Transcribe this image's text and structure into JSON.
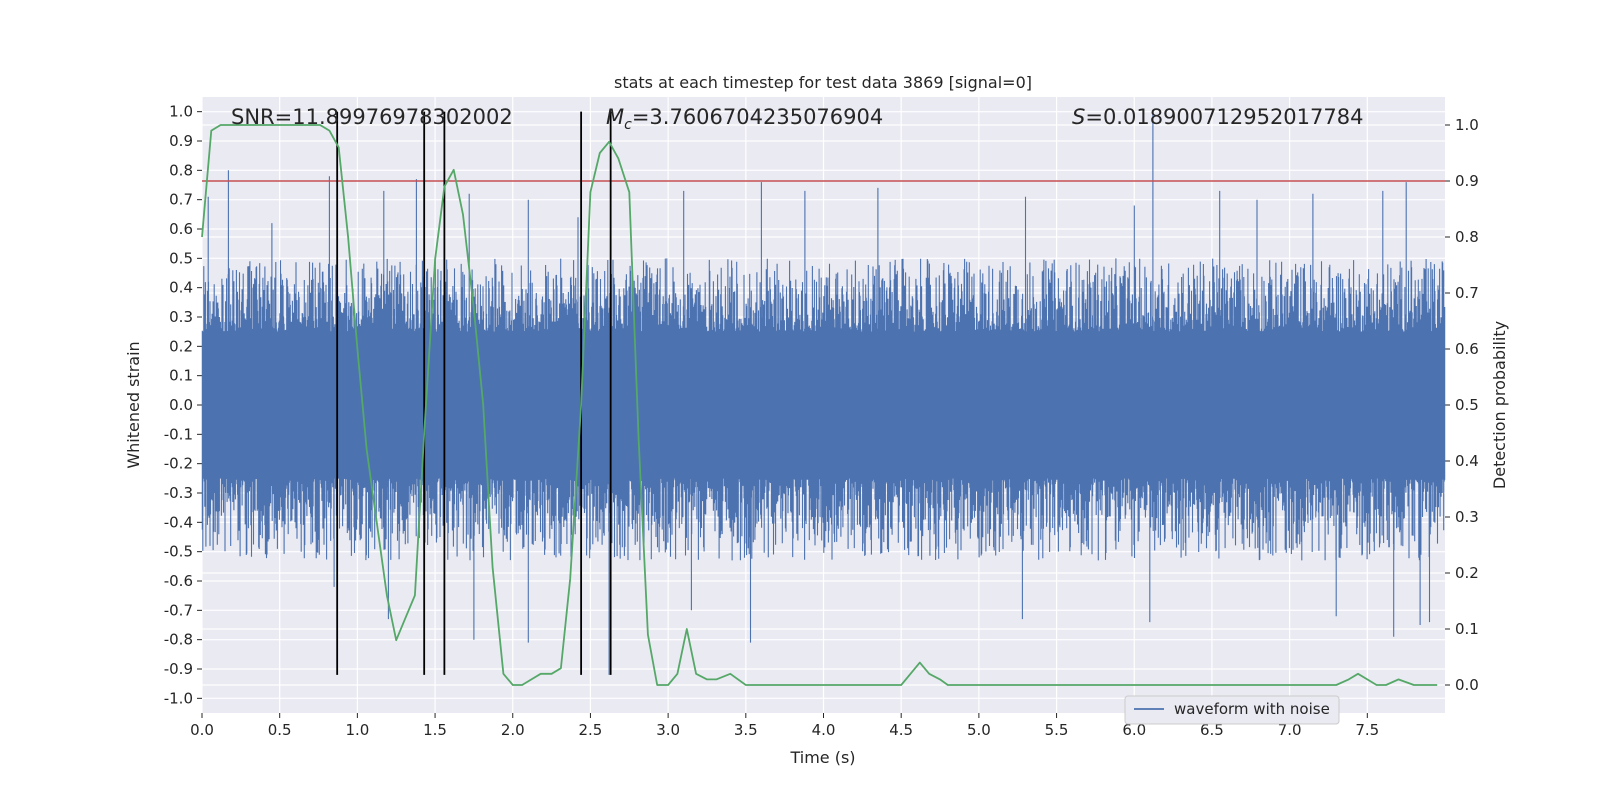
{
  "chart_data": {
    "type": "line",
    "title": "stats at each timestep for test data 3869 [signal=0]",
    "xlabel": "Time (s)",
    "ylabel": "Whitened strain",
    "y2label": "Detection probability",
    "xlim": [
      0.0,
      8.0
    ],
    "ylim": [
      -1.05,
      1.05
    ],
    "y2lim": [
      -0.05,
      1.05
    ],
    "xticks": [
      "0.0",
      "0.5",
      "1.0",
      "1.5",
      "2.0",
      "2.5",
      "3.0",
      "3.5",
      "4.0",
      "4.5",
      "5.0",
      "5.5",
      "6.0",
      "6.5",
      "7.0",
      "7.5"
    ],
    "yticks": [
      "1.0",
      "0.9",
      "0.8",
      "0.7",
      "0.6",
      "0.5",
      "0.4",
      "0.3",
      "0.2",
      "0.1",
      "0.0",
      "-0.1",
      "-0.2",
      "-0.3",
      "-0.4",
      "-0.5",
      "-0.6",
      "-0.7",
      "-0.8",
      "-0.9",
      "-1.0"
    ],
    "y2ticks": [
      "1.0",
      "0.9",
      "0.8",
      "0.7",
      "0.6",
      "0.5",
      "0.4",
      "0.3",
      "0.2",
      "0.1",
      "0.0"
    ],
    "annotations": {
      "snr": "SNR=11.89976978302002",
      "mc_symbol": "M",
      "mc_sub": "c",
      "mc_value": "=3.7606704235076904",
      "s_symbol": "S",
      "s_value": "=0.018900712952017784"
    },
    "legend": {
      "label": "waveform with noise",
      "placement": "lower right"
    },
    "threshold": {
      "axis": "right",
      "y": 0.9,
      "color": "#c44e52"
    },
    "vertical_lines": [
      {
        "x": 0.87,
        "ymin": -0.92,
        "ymax": 1.0
      },
      {
        "x": 1.43,
        "ymin": -0.92,
        "ymax": 1.0
      },
      {
        "x": 1.56,
        "ymin": -0.92,
        "ymax": 1.0
      },
      {
        "x": 2.44,
        "ymin": -0.92,
        "ymax": 1.0
      },
      {
        "x": 2.63,
        "ymin": -0.92,
        "ymax": 1.0
      }
    ],
    "series": [
      {
        "name": "waveform with noise",
        "axis": "left",
        "color": "#4c72b0",
        "band": {
          "core_min": -0.25,
          "core_max": 0.25,
          "typical_min": -0.47,
          "typical_max": 0.42
        },
        "spikes": [
          {
            "x": 0.04,
            "y": 0.71
          },
          {
            "x": 0.17,
            "y": 0.8
          },
          {
            "x": 0.45,
            "y": 0.62
          },
          {
            "x": 0.82,
            "y": 0.78
          },
          {
            "x": 1.17,
            "y": 0.73
          },
          {
            "x": 1.38,
            "y": 0.77
          },
          {
            "x": 1.72,
            "y": 0.72
          },
          {
            "x": 2.1,
            "y": 0.7
          },
          {
            "x": 2.42,
            "y": 0.64
          },
          {
            "x": 3.1,
            "y": 0.73
          },
          {
            "x": 3.6,
            "y": 0.76
          },
          {
            "x": 3.88,
            "y": 0.73
          },
          {
            "x": 4.35,
            "y": 0.74
          },
          {
            "x": 5.3,
            "y": 0.71
          },
          {
            "x": 6.0,
            "y": 0.68
          },
          {
            "x": 6.12,
            "y": 1.0
          },
          {
            "x": 6.55,
            "y": 0.73
          },
          {
            "x": 6.79,
            "y": 0.7
          },
          {
            "x": 7.15,
            "y": 0.72
          },
          {
            "x": 7.6,
            "y": 0.73
          },
          {
            "x": 7.75,
            "y": 0.76
          },
          {
            "x": 0.85,
            "y": -0.62
          },
          {
            "x": 1.2,
            "y": -0.73
          },
          {
            "x": 1.75,
            "y": -0.8
          },
          {
            "x": 2.1,
            "y": -0.81
          },
          {
            "x": 2.62,
            "y": -0.92
          },
          {
            "x": 3.15,
            "y": -0.7
          },
          {
            "x": 3.53,
            "y": -0.81
          },
          {
            "x": 5.28,
            "y": -0.73
          },
          {
            "x": 6.1,
            "y": -0.74
          },
          {
            "x": 7.3,
            "y": -0.72
          },
          {
            "x": 7.67,
            "y": -0.79
          },
          {
            "x": 7.84,
            "y": -0.75
          },
          {
            "x": 7.9,
            "y": -0.74
          }
        ]
      },
      {
        "name": "detection probability",
        "axis": "right",
        "color": "#55a868",
        "x": [
          0.0,
          0.06,
          0.12,
          0.2,
          0.3,
          0.4,
          0.5,
          0.6,
          0.7,
          0.76,
          0.82,
          0.88,
          0.94,
          1.0,
          1.06,
          1.12,
          1.19,
          1.25,
          1.31,
          1.37,
          1.43,
          1.5,
          1.56,
          1.62,
          1.68,
          1.75,
          1.81,
          1.87,
          1.94,
          2.0,
          2.06,
          2.12,
          2.18,
          2.25,
          2.31,
          2.37,
          2.44,
          2.5,
          2.56,
          2.62,
          2.68,
          2.75,
          2.81,
          2.87,
          2.93,
          3.0,
          3.06,
          3.12,
          3.18,
          3.25,
          3.31,
          3.4,
          3.5,
          3.6,
          3.8,
          4.0,
          4.2,
          4.4,
          4.5,
          4.56,
          4.62,
          4.68,
          4.75,
          4.8,
          4.9,
          5.0,
          5.2,
          5.4,
          5.5,
          5.56,
          5.7,
          5.9,
          6.1,
          6.3,
          6.5,
          6.7,
          6.9,
          7.1,
          7.2,
          7.3,
          7.38,
          7.44,
          7.5,
          7.56,
          7.62,
          7.7,
          7.8,
          7.95
        ],
        "y": [
          0.8,
          0.99,
          1.0,
          1.0,
          1.0,
          1.0,
          1.0,
          1.0,
          1.0,
          1.0,
          0.99,
          0.96,
          0.8,
          0.6,
          0.42,
          0.3,
          0.16,
          0.08,
          0.12,
          0.16,
          0.45,
          0.76,
          0.89,
          0.92,
          0.84,
          0.67,
          0.5,
          0.21,
          0.02,
          0.0,
          0.0,
          0.01,
          0.02,
          0.02,
          0.03,
          0.19,
          0.5,
          0.88,
          0.95,
          0.97,
          0.94,
          0.88,
          0.44,
          0.09,
          0.0,
          0.0,
          0.02,
          0.1,
          0.02,
          0.01,
          0.01,
          0.02,
          0.0,
          0.0,
          0.0,
          0.0,
          0.0,
          0.0,
          0.0,
          0.02,
          0.04,
          0.02,
          0.01,
          0.0,
          0.0,
          0.0,
          0.0,
          0.0,
          0.0,
          0.0,
          0.0,
          0.0,
          0.0,
          0.0,
          0.0,
          0.0,
          0.0,
          0.0,
          0.0,
          0.0,
          0.01,
          0.02,
          0.01,
          0.0,
          0.0,
          0.01,
          0.0,
          0.0
        ]
      }
    ]
  }
}
